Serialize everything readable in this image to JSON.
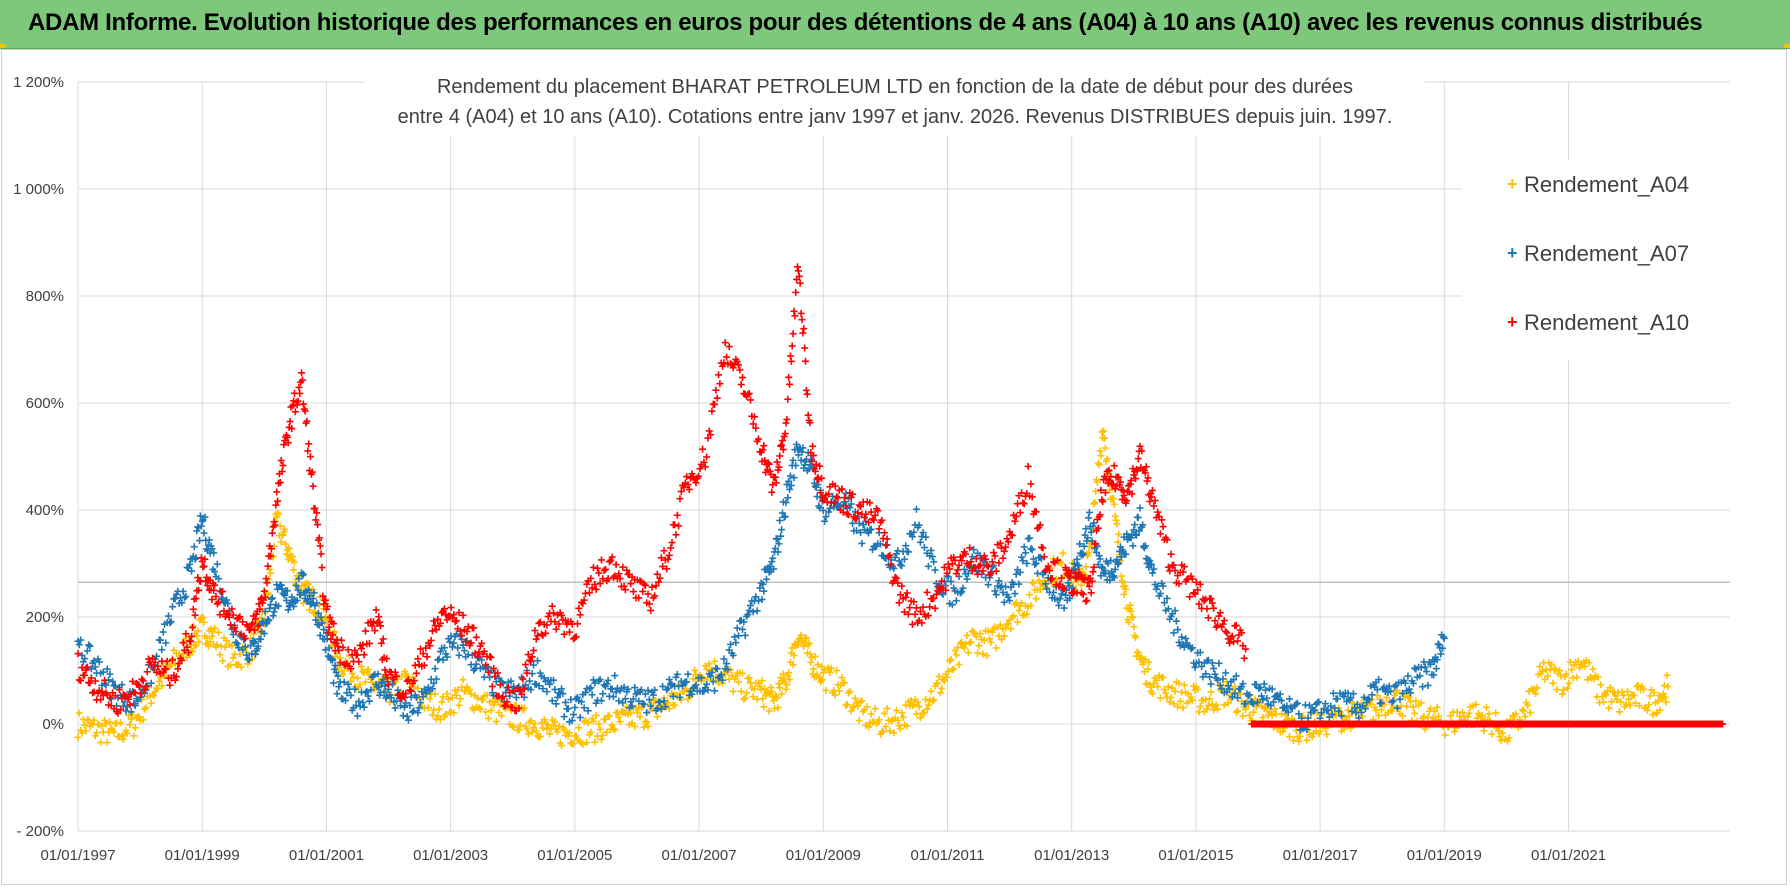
{
  "header": {
    "title": "ADAM Informe. Evolution historique des performances en euros pour des détentions de 4 ans (A04) à 10 ans (A10) avec les revenus connus distribués",
    "background_color": "#7dc87a"
  },
  "chart_data": {
    "type": "scatter",
    "title_line1": "Rendement du placement BHARAT PETROLEUM LTD en fonction de la date de début pour des durées",
    "title_line2": "entre 4 (A04) et 10 ans (A10).  Cotations entre janv 1997 et janv. 2026. Revenus DISTRIBUES depuis juin. 1997.",
    "xlabel": "",
    "ylabel": "",
    "xlim": [
      1997.0,
      2023.6
    ],
    "ylim": [
      -200,
      1200
    ],
    "y_ticks": [
      -200,
      0,
      200,
      400,
      600,
      800,
      1000,
      1200
    ],
    "y_tick_labels": [
      "- 200%",
      "0%",
      "200%",
      "400%",
      "600%",
      "800%",
      "1 000%",
      "1 200%"
    ],
    "x_ticks": [
      1997,
      1999,
      2001,
      2003,
      2005,
      2007,
      2009,
      2011,
      2013,
      2015,
      2017,
      2019,
      2021
    ],
    "x_tick_labels": [
      "01/01/1997",
      "01/01/1999",
      "01/01/2001",
      "01/01/2003",
      "01/01/2005",
      "01/01/2007",
      "01/01/2009",
      "01/01/2011",
      "01/01/2013",
      "01/01/2015",
      "01/01/2017",
      "01/01/2019",
      "01/01/2021"
    ],
    "grid": true,
    "reference_line_value": 265,
    "legend_position": "top-right",
    "series": [
      {
        "name": "Rendement_A04",
        "color": "#ffc000",
        "x": [
          1997.0,
          1997.3,
          1997.6,
          1997.9,
          1998.2,
          1998.5,
          1998.8,
          1999.0,
          1999.2,
          1999.5,
          1999.8,
          2000.0,
          2000.2,
          2000.4,
          2000.6,
          2000.8,
          2001.0,
          2001.2,
          2001.5,
          2001.8,
          2002.0,
          2002.3,
          2002.6,
          2002.9,
          2003.2,
          2003.5,
          2003.8,
          2004.1,
          2004.4,
          2004.7,
          2005.0,
          2005.3,
          2005.6,
          2005.9,
          2006.2,
          2006.5,
          2006.8,
          2007.1,
          2007.4,
          2007.7,
          2008.0,
          2008.2,
          2008.4,
          2008.6,
          2008.8,
          2009.0,
          2009.3,
          2009.6,
          2009.9,
          2010.2,
          2010.5,
          2010.8,
          2011.1,
          2011.4,
          2011.7,
          2012.0,
          2012.3,
          2012.6,
          2012.9,
          2013.1,
          2013.3,
          2013.5,
          2013.7,
          2013.9,
          2014.1,
          2014.3,
          2014.6,
          2014.9,
          2015.2,
          2015.5,
          2015.8,
          2016.1,
          2016.4,
          2016.7,
          2017.0,
          2017.3,
          2017.6,
          2017.9,
          2018.2,
          2018.5,
          2018.8,
          2019.1,
          2019.4,
          2019.7,
          2020.0,
          2020.3,
          2020.6,
          2020.9,
          2021.2,
          2021.5,
          2021.8,
          2022.1,
          2022.4,
          2022.6
        ],
        "y": [
          0,
          -10,
          -20,
          0,
          60,
          110,
          150,
          180,
          160,
          120,
          140,
          200,
          380,
          320,
          250,
          230,
          200,
          120,
          90,
          70,
          60,
          80,
          40,
          30,
          60,
          40,
          20,
          10,
          0,
          -20,
          -15,
          -10,
          0,
          10,
          20,
          40,
          60,
          110,
          90,
          70,
          60,
          40,
          80,
          170,
          120,
          90,
          70,
          20,
          0,
          10,
          30,
          60,
          110,
          160,
          150,
          200,
          230,
          280,
          300,
          260,
          320,
          560,
          380,
          220,
          120,
          80,
          60,
          50,
          40,
          60,
          30,
          20,
          0,
          -10,
          0,
          10,
          20,
          30,
          50,
          20,
          10,
          0,
          20,
          10,
          -20,
          20,
          100,
          80,
          120,
          60,
          40,
          50,
          40,
          70
        ]
      },
      {
        "name": "Rendement_A07",
        "color": "#1f77b4",
        "x": [
          1997.0,
          1997.3,
          1997.6,
          1997.9,
          1998.2,
          1998.5,
          1998.8,
          1999.0,
          1999.2,
          1999.5,
          1999.8,
          2000.0,
          2000.2,
          2000.4,
          2000.6,
          2000.8,
          2001.0,
          2001.2,
          2001.5,
          2001.8,
          2002.0,
          2002.3,
          2002.6,
          2002.9,
          2003.2,
          2003.5,
          2003.8,
          2004.1,
          2004.4,
          2004.7,
          2005.0,
          2005.3,
          2005.6,
          2005.9,
          2006.2,
          2006.5,
          2006.8,
          2007.1,
          2007.4,
          2007.7,
          2008.0,
          2008.2,
          2008.4,
          2008.6,
          2008.8,
          2009.0,
          2009.3,
          2009.6,
          2009.9,
          2010.2,
          2010.5,
          2010.8,
          2011.1,
          2011.4,
          2011.7,
          2012.0,
          2012.3,
          2012.6,
          2012.9,
          2013.1,
          2013.3,
          2013.5,
          2013.7,
          2013.9,
          2014.1,
          2014.3,
          2014.6,
          2014.9,
          2015.2,
          2015.5,
          2015.8,
          2016.1,
          2016.4,
          2016.7,
          2017.0,
          2017.3,
          2017.6,
          2017.9,
          2018.2,
          2018.5,
          2018.8,
          2019.0
        ],
        "y": [
          140,
          110,
          60,
          40,
          100,
          200,
          280,
          380,
          300,
          180,
          130,
          190,
          240,
          230,
          260,
          230,
          150,
          60,
          40,
          80,
          60,
          20,
          50,
          140,
          150,
          100,
          60,
          60,
          100,
          50,
          20,
          60,
          70,
          50,
          40,
          60,
          80,
          70,
          100,
          180,
          250,
          300,
          420,
          520,
          480,
          400,
          420,
          360,
          340,
          300,
          380,
          280,
          240,
          310,
          280,
          230,
          330,
          270,
          220,
          310,
          380,
          280,
          300,
          340,
          380,
          280,
          200,
          140,
          100,
          80,
          50,
          60,
          30,
          10,
          20,
          40,
          30,
          60,
          50,
          80,
          100,
          160
        ]
      },
      {
        "name": "Rendement_A10",
        "color": "#ff0000",
        "x": [
          1997.0,
          1997.3,
          1997.6,
          1997.9,
          1998.2,
          1998.5,
          1998.8,
          1999.0,
          1999.2,
          1999.5,
          1999.8,
          2000.0,
          2000.2,
          2000.4,
          2000.6,
          2000.8,
          2001.0,
          2001.2,
          2001.5,
          2001.8,
          2002.0,
          2002.3,
          2002.6,
          2002.9,
          2003.2,
          2003.5,
          2003.8,
          2004.1,
          2004.4,
          2004.7,
          2005.0,
          2005.3,
          2005.6,
          2005.9,
          2006.2,
          2006.5,
          2006.8,
          2007.1,
          2007.4,
          2007.7,
          2008.0,
          2008.2,
          2008.4,
          2008.6,
          2008.8,
          2009.0,
          2009.3,
          2009.6,
          2009.9,
          2010.2,
          2010.5,
          2010.8,
          2011.1,
          2011.4,
          2011.7,
          2012.0,
          2012.3,
          2012.6,
          2012.9,
          2013.1,
          2013.3,
          2013.5,
          2013.7,
          2013.9,
          2014.1,
          2014.3,
          2014.6,
          2014.9,
          2015.2,
          2015.5,
          2015.8
        ],
        "y": [
          110,
          70,
          40,
          60,
          110,
          90,
          160,
          310,
          240,
          200,
          170,
          240,
          420,
          560,
          640,
          420,
          200,
          140,
          120,
          200,
          90,
          60,
          140,
          210,
          180,
          140,
          60,
          40,
          180,
          200,
          180,
          270,
          300,
          260,
          230,
          320,
          450,
          500,
          700,
          640,
          520,
          440,
          560,
          860,
          520,
          440,
          420,
          400,
          380,
          250,
          200,
          240,
          300,
          310,
          290,
          350,
          460,
          300,
          270,
          260,
          250,
          440,
          460,
          430,
          500,
          420,
          300,
          260,
          220,
          180,
          140
        ]
      },
      {
        "name": "Rendement_A10 (zero band)",
        "color": "#ff0000",
        "x": [
          2015.9,
          2023.5
        ],
        "y": [
          0,
          0
        ]
      }
    ]
  },
  "legend": {
    "items": [
      {
        "label": "Rendement_A04",
        "color": "#ffc000"
      },
      {
        "label": "Rendement_A07",
        "color": "#1f77b4"
      },
      {
        "label": "Rendement_A10",
        "color": "#ff0000"
      }
    ],
    "marker": "+"
  }
}
